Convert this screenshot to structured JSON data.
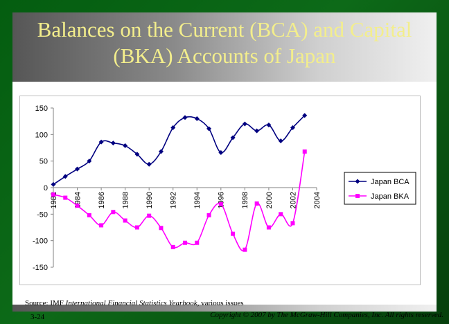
{
  "slide": {
    "title_line1": "Balances on the Current (BCA) and Capital",
    "title_line2": "(BKA) Accounts of Japan",
    "title_color": "#f3ee8c",
    "source_prefix": "Source: IMF ",
    "source_italic": "International Financial Statistics Yearbook,",
    "source_suffix": " various issues",
    "slide_number": "3-24",
    "copyright": "Copyright © 2007 by The McGraw-Hill Companies, Inc. All rights reserved."
  },
  "chart_data": {
    "type": "line",
    "title": "",
    "xlabel": "",
    "ylabel": "",
    "ylim": [
      -150,
      150
    ],
    "yticks": [
      150,
      100,
      50,
      0,
      -50,
      -100,
      -150
    ],
    "xlim": [
      1982,
      2004
    ],
    "xticks": [
      "1982",
      "1984",
      "1986",
      "1988",
      "1990",
      "1992",
      "1994",
      "1996",
      "1998",
      "2000",
      "2002",
      "2004"
    ],
    "grid": false,
    "legend_position": "right",
    "series": [
      {
        "name": "Japan BCA",
        "color": "#000080",
        "marker": "diamond",
        "x": [
          1982,
          1983,
          1984,
          1985,
          1986,
          1987,
          1988,
          1989,
          1990,
          1991,
          1992,
          1993,
          1994,
          1995,
          1996,
          1997,
          1998,
          1999,
          2000,
          2001,
          2002,
          2003
        ],
        "values": [
          6,
          21,
          35,
          50,
          86,
          84,
          79,
          63,
          44,
          68,
          113,
          132,
          130,
          111,
          66,
          94,
          120,
          107,
          118,
          88,
          113,
          136
        ]
      },
      {
        "name": "Japan BKA",
        "color": "#ff00ff",
        "marker": "square",
        "x": [
          1982,
          1983,
          1984,
          1985,
          1986,
          1987,
          1988,
          1989,
          1990,
          1991,
          1992,
          1993,
          1994,
          1995,
          1996,
          1997,
          1998,
          1999,
          2000,
          2001,
          2002,
          2003
        ],
        "values": [
          -13,
          -19,
          -34,
          -52,
          -71,
          -46,
          -62,
          -75,
          -53,
          -76,
          -112,
          -104,
          -104,
          -52,
          -31,
          -87,
          -117,
          -30,
          -75,
          -50,
          -67,
          68
        ]
      }
    ]
  }
}
